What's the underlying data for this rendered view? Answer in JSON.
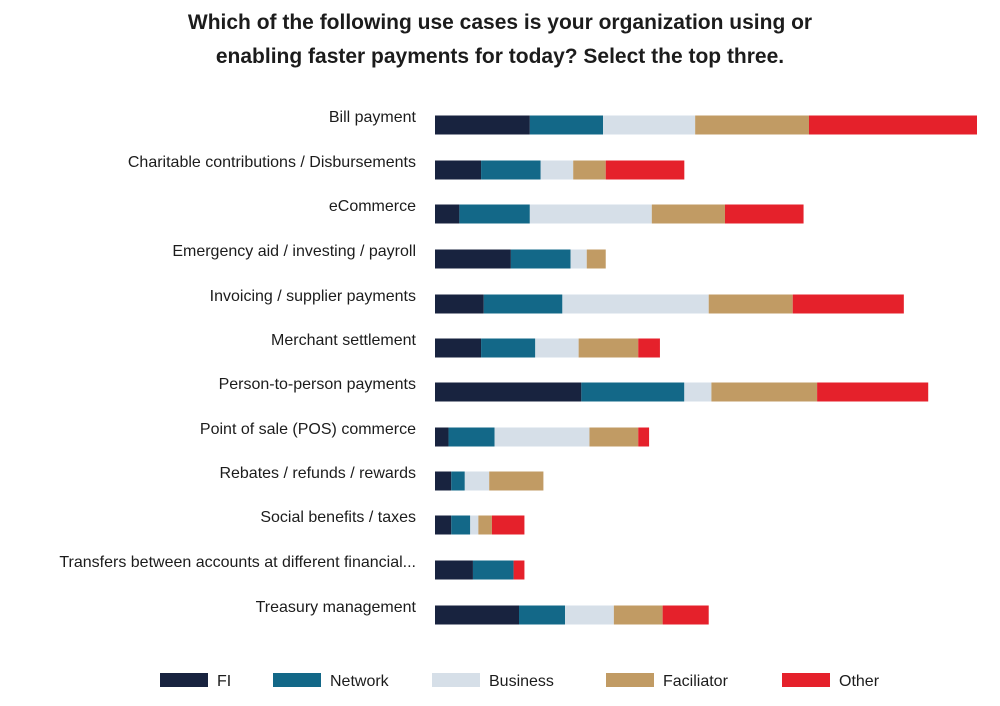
{
  "chart_data": {
    "type": "bar",
    "orientation": "horizontal",
    "stacked": true,
    "title_line1": "Which of the following use cases is your organization using or",
    "title_line2": "enabling faster payments for today? Select the top three.",
    "categories": [
      "Bill payment",
      "Charitable contributions / Disbursements",
      "eCommerce",
      "Emergency aid / investing / payroll",
      "Invoicing / supplier payments",
      "Merchant settlement",
      "Person-to-person payments",
      "Point of sale (POS) commerce",
      "Rebates / refunds / rewards",
      "Social benefits / taxes",
      "Transfers between accounts at different financial...",
      "Treasury management"
    ],
    "series": [
      {
        "name": "FI",
        "color": "#18233f",
        "values": [
          35,
          17,
          9,
          28,
          18,
          17,
          54,
          5,
          6,
          6,
          14,
          31
        ]
      },
      {
        "name": "Network",
        "color": "#136888",
        "values": [
          27,
          22,
          26,
          22,
          29,
          20,
          38,
          17,
          5,
          7,
          15,
          17
        ]
      },
      {
        "name": "Business",
        "color": "#d6dfe8",
        "values": [
          34,
          12,
          45,
          6,
          54,
          16,
          10,
          35,
          9,
          3,
          0,
          18
        ]
      },
      {
        "name": "Faciliator",
        "color": "#c19b64",
        "values": [
          42,
          12,
          27,
          7,
          31,
          22,
          39,
          18,
          20,
          5,
          0,
          18
        ]
      },
      {
        "name": "Other",
        "color": "#e5212b",
        "values": [
          62,
          29,
          29,
          0,
          41,
          8,
          41,
          4,
          0,
          12,
          4,
          17
        ]
      }
    ],
    "xlim": [
      0,
      200
    ],
    "xlabel": "",
    "ylabel": "",
    "grid": false,
    "legend_position": "bottom"
  }
}
